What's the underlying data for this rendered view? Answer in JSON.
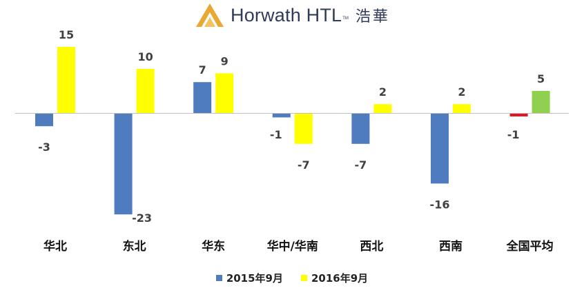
{
  "logo": {
    "brand": "Horwath HTL",
    "trademark": "TM",
    "brand_cn": "浩華"
  },
  "chart_data": {
    "type": "bar",
    "categories": [
      "华北",
      "东北",
      "华东",
      "华中/华南",
      "西北",
      "西南",
      "全国平均"
    ],
    "series": [
      {
        "name": "2015年9月",
        "values": [
          -3,
          -23,
          7,
          -1,
          -7,
          -16,
          -1
        ],
        "color": "#4f7cbf"
      },
      {
        "name": "2016年9月",
        "values": [
          15,
          10,
          9,
          -7,
          2,
          2,
          5
        ],
        "color": "#ffff00"
      }
    ],
    "average_bar_colors": {
      "2015年9月": "#e0171f",
      "2016年9月": "#8fd14f"
    },
    "value_labels": {
      "2015年9月": [
        "-3",
        "-23",
        "7",
        "-1",
        "-7",
        "-16",
        "-1"
      ],
      "2016年9月": [
        "15",
        "10",
        "9",
        "-7",
        "2",
        "2",
        "5"
      ]
    },
    "title": "",
    "xlabel": "",
    "ylabel": "",
    "ylim": [
      -23,
      15
    ],
    "grid": false,
    "legend": "bottom"
  }
}
